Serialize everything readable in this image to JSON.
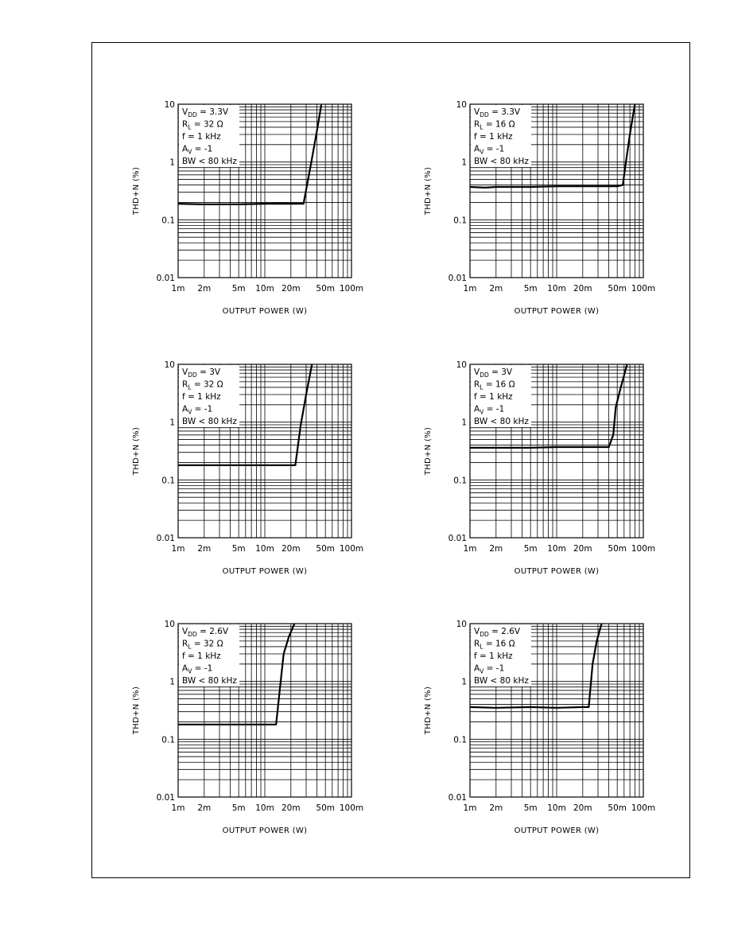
{
  "chart_data": [
    {
      "type": "line",
      "xlabel": "OUTPUT POWER (W)",
      "ylabel": "THD+N (%)",
      "x_scale": "log",
      "y_scale": "log",
      "xlim": [
        0.001,
        0.1
      ],
      "ylim": [
        0.01,
        10
      ],
      "x_ticks": [
        "1m",
        "2m",
        "5m",
        "10m",
        "20m",
        "50m",
        "100m"
      ],
      "y_ticks": [
        "10",
        "1",
        "0.1",
        "0.01"
      ],
      "grid": true,
      "conditions": [
        {
          "main": "V",
          "sub": "DD",
          "rest": " = 3.3V"
        },
        {
          "main": "R",
          "sub": "L",
          "rest": " = 32 Ω"
        },
        {
          "main": "f = 1 kHz",
          "sub": "",
          "rest": ""
        },
        {
          "main": "A",
          "sub": "V",
          "rest": " = -1"
        },
        {
          "main": "BW < 80 kHz",
          "sub": "",
          "rest": ""
        }
      ],
      "series": [
        {
          "x": [
            0.001,
            0.002,
            0.005,
            0.01,
            0.02,
            0.028,
            0.034,
            0.04,
            0.045
          ],
          "y": [
            0.19,
            0.185,
            0.185,
            0.19,
            0.19,
            0.19,
            0.9,
            3.5,
            10
          ]
        }
      ]
    },
    {
      "type": "line",
      "xlabel": "OUTPUT POWER (W)",
      "ylabel": "THD+N (%)",
      "x_scale": "log",
      "y_scale": "log",
      "xlim": [
        0.001,
        0.1
      ],
      "ylim": [
        0.01,
        10
      ],
      "x_ticks": [
        "1m",
        "2m",
        "5m",
        "10m",
        "20m",
        "50m",
        "100m"
      ],
      "y_ticks": [
        "10",
        "1",
        "0.1",
        "0.01"
      ],
      "grid": true,
      "conditions": [
        {
          "main": "V",
          "sub": "DD",
          "rest": " = 3.3V"
        },
        {
          "main": "R",
          "sub": "L",
          "rest": " = 16 Ω"
        },
        {
          "main": "f = 1 kHz",
          "sub": "",
          "rest": ""
        },
        {
          "main": "A",
          "sub": "V",
          "rest": " = -1"
        },
        {
          "main": "BW < 80 kHz",
          "sub": "",
          "rest": ""
        }
      ],
      "series": [
        {
          "x": [
            0.001,
            0.0015,
            0.002,
            0.005,
            0.01,
            0.02,
            0.05,
            0.058,
            0.063,
            0.07,
            0.08
          ],
          "y": [
            0.37,
            0.36,
            0.37,
            0.37,
            0.38,
            0.38,
            0.38,
            0.4,
            1.0,
            3.0,
            10
          ]
        }
      ]
    },
    {
      "type": "line",
      "xlabel": "OUTPUT POWER (W)",
      "ylabel": "THD+N (%)",
      "x_scale": "log",
      "y_scale": "log",
      "xlim": [
        0.001,
        0.1
      ],
      "ylim": [
        0.01,
        10
      ],
      "x_ticks": [
        "1m",
        "2m",
        "5m",
        "10m",
        "20m",
        "50m",
        "100m"
      ],
      "y_ticks": [
        "10",
        "1",
        "0.1",
        "0.01"
      ],
      "grid": true,
      "conditions": [
        {
          "main": "V",
          "sub": "DD",
          "rest": " = 3V"
        },
        {
          "main": "R",
          "sub": "L",
          "rest": " = 32 Ω"
        },
        {
          "main": "f = 1 kHz",
          "sub": "",
          "rest": ""
        },
        {
          "main": "A",
          "sub": "V",
          "rest": " = -1"
        },
        {
          "main": "BW < 80 kHz",
          "sub": "",
          "rest": ""
        }
      ],
      "series": [
        {
          "x": [
            0.001,
            0.002,
            0.005,
            0.01,
            0.02,
            0.0225,
            0.026,
            0.03,
            0.035
          ],
          "y": [
            0.18,
            0.18,
            0.18,
            0.18,
            0.18,
            0.18,
            0.9,
            3.0,
            10
          ]
        }
      ]
    },
    {
      "type": "line",
      "xlabel": "OUTPUT POWER (W)",
      "ylabel": "THD+N (%)",
      "x_scale": "log",
      "y_scale": "log",
      "xlim": [
        0.001,
        0.1
      ],
      "ylim": [
        0.01,
        10
      ],
      "x_ticks": [
        "1m",
        "2m",
        "5m",
        "10m",
        "20m",
        "50m",
        "100m"
      ],
      "y_ticks": [
        "10",
        "1",
        "0.1",
        "0.01"
      ],
      "grid": true,
      "conditions": [
        {
          "main": "V",
          "sub": "DD",
          "rest": " = 3V"
        },
        {
          "main": "R",
          "sub": "L",
          "rest": " = 16 Ω"
        },
        {
          "main": "f = 1 kHz",
          "sub": "",
          "rest": ""
        },
        {
          "main": "A",
          "sub": "V",
          "rest": " = -1"
        },
        {
          "main": "BW < 80 kHz",
          "sub": "",
          "rest": ""
        }
      ],
      "series": [
        {
          "x": [
            0.001,
            0.002,
            0.005,
            0.01,
            0.02,
            0.04,
            0.045,
            0.048,
            0.055,
            0.065
          ],
          "y": [
            0.36,
            0.36,
            0.36,
            0.37,
            0.37,
            0.37,
            0.6,
            1.8,
            4.0,
            10
          ]
        }
      ]
    },
    {
      "type": "line",
      "xlabel": "OUTPUT POWER (W)",
      "ylabel": "THD+N (%)",
      "x_scale": "log",
      "y_scale": "log",
      "xlim": [
        0.001,
        0.1
      ],
      "ylim": [
        0.01,
        10
      ],
      "x_ticks": [
        "1m",
        "2m",
        "5m",
        "10m",
        "20m",
        "50m",
        "100m"
      ],
      "y_ticks": [
        "10",
        "1",
        "0.1",
        "0.01"
      ],
      "grid": true,
      "conditions": [
        {
          "main": "V",
          "sub": "DD",
          "rest": " = 2.6V"
        },
        {
          "main": "R",
          "sub": "L",
          "rest": " = 32 Ω"
        },
        {
          "main": "f = 1 kHz",
          "sub": "",
          "rest": ""
        },
        {
          "main": "A",
          "sub": "V",
          "rest": " = -1"
        },
        {
          "main": "BW < 80 kHz",
          "sub": "",
          "rest": ""
        }
      ],
      "series": [
        {
          "x": [
            0.001,
            0.002,
            0.005,
            0.01,
            0.0135,
            0.015,
            0.0165,
            0.019,
            0.022
          ],
          "y": [
            0.18,
            0.18,
            0.18,
            0.18,
            0.18,
            0.8,
            3.0,
            6.0,
            10
          ]
        }
      ]
    },
    {
      "type": "line",
      "xlabel": "OUTPUT POWER (W)",
      "ylabel": "THD+N (%)",
      "x_scale": "log",
      "y_scale": "log",
      "xlim": [
        0.001,
        0.1
      ],
      "ylim": [
        0.01,
        10
      ],
      "x_ticks": [
        "1m",
        "2m",
        "5m",
        "10m",
        "20m",
        "50m",
        "100m"
      ],
      "y_ticks": [
        "10",
        "1",
        "0.1",
        "0.01"
      ],
      "grid": true,
      "conditions": [
        {
          "main": "V",
          "sub": "DD",
          "rest": " = 2.6V"
        },
        {
          "main": "R",
          "sub": "L",
          "rest": " = 16 Ω"
        },
        {
          "main": "f = 1 kHz",
          "sub": "",
          "rest": ""
        },
        {
          "main": "A",
          "sub": "V",
          "rest": " = -1"
        },
        {
          "main": "BW < 80 kHz",
          "sub": "",
          "rest": ""
        }
      ],
      "series": [
        {
          "x": [
            0.001,
            0.002,
            0.005,
            0.01,
            0.02,
            0.0235,
            0.026,
            0.029,
            0.033
          ],
          "y": [
            0.36,
            0.35,
            0.36,
            0.35,
            0.36,
            0.36,
            2.0,
            5.0,
            10
          ]
        }
      ]
    }
  ]
}
